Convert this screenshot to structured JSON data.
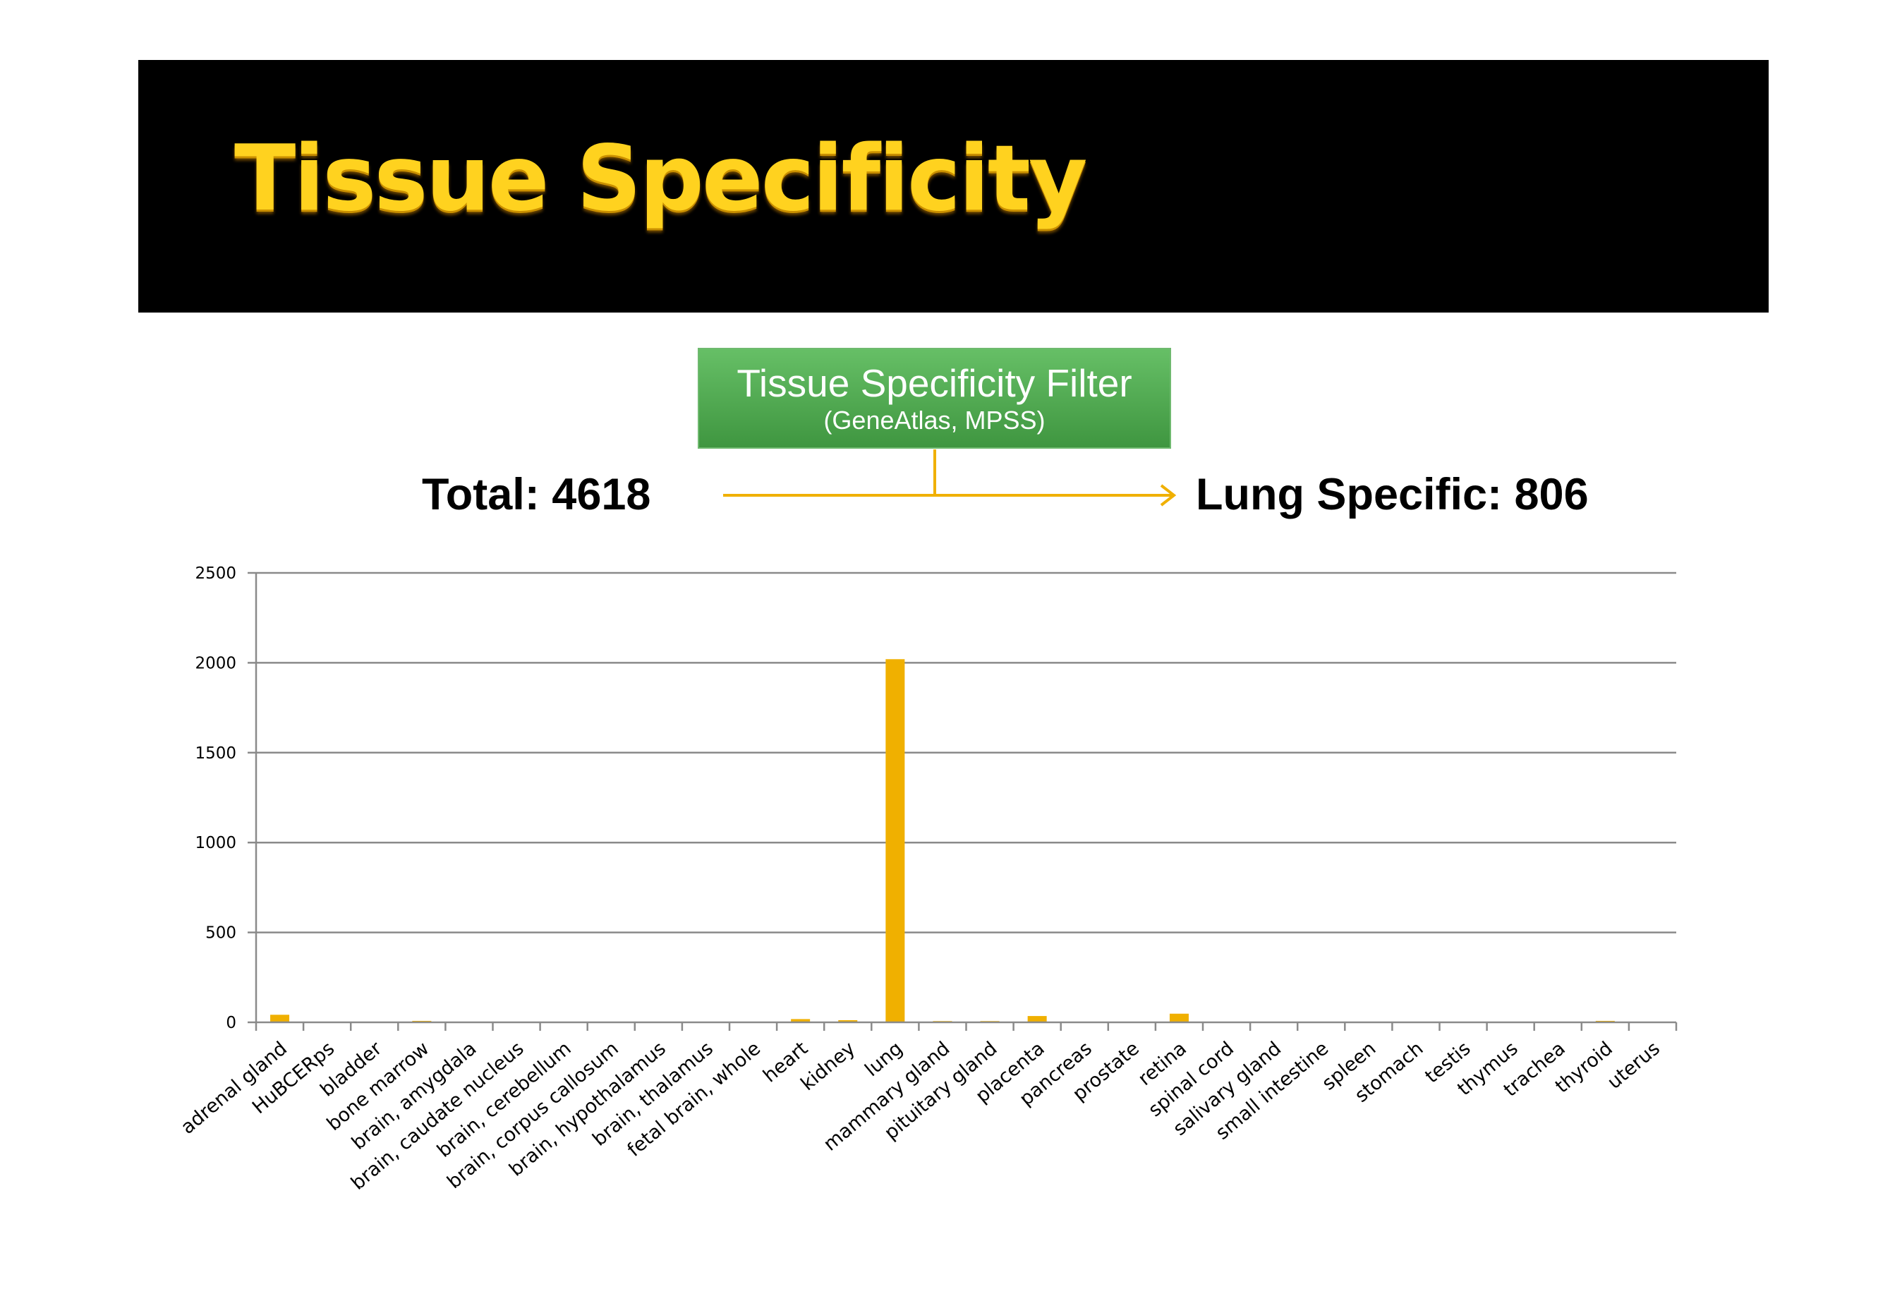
{
  "header": {
    "title": "Tissue Specificity"
  },
  "filter": {
    "title": "Tissue Specificity Filter",
    "subtitle": "(GeneAtlas, MPSS)",
    "total_label": "Total: 4618",
    "lung_label": "Lung Specific: 806"
  },
  "colors": {
    "bar": "#f0b000",
    "arrow": "#f0b000",
    "banner": "#000000",
    "title_text": "#ffd21f",
    "filter_box": "#4ea84e"
  },
  "chart_data": {
    "type": "bar",
    "title": "",
    "xlabel": "",
    "ylabel": "",
    "ylim": [
      0,
      2500
    ],
    "yticks": [
      0,
      500,
      1000,
      1500,
      2000,
      2500
    ],
    "grid": true,
    "categories": [
      "adrenal gland",
      "HuBCERps",
      "bladder",
      "bone marrow",
      "brain, amygdala",
      "brain, caudate nucleus",
      "brain, cerebellum",
      "brain, corpus callosum",
      "brain, hypothalamus",
      "brain, thalamus",
      "fetal brain, whole",
      "heart",
      "kidney",
      "lung",
      "mammary gland",
      "pituitary gland",
      "placenta",
      "pancreas",
      "prostate",
      "retina",
      "spinal cord",
      "salivary gland",
      "small intestine",
      "spleen",
      "stomach",
      "testis",
      "thymus",
      "trachea",
      "thyroid",
      "uterus"
    ],
    "values": [
      42,
      0,
      0,
      8,
      0,
      0,
      0,
      0,
      0,
      0,
      0,
      18,
      12,
      2020,
      7,
      7,
      35,
      0,
      0,
      48,
      0,
      0,
      0,
      0,
      0,
      0,
      0,
      0,
      8,
      0
    ]
  }
}
